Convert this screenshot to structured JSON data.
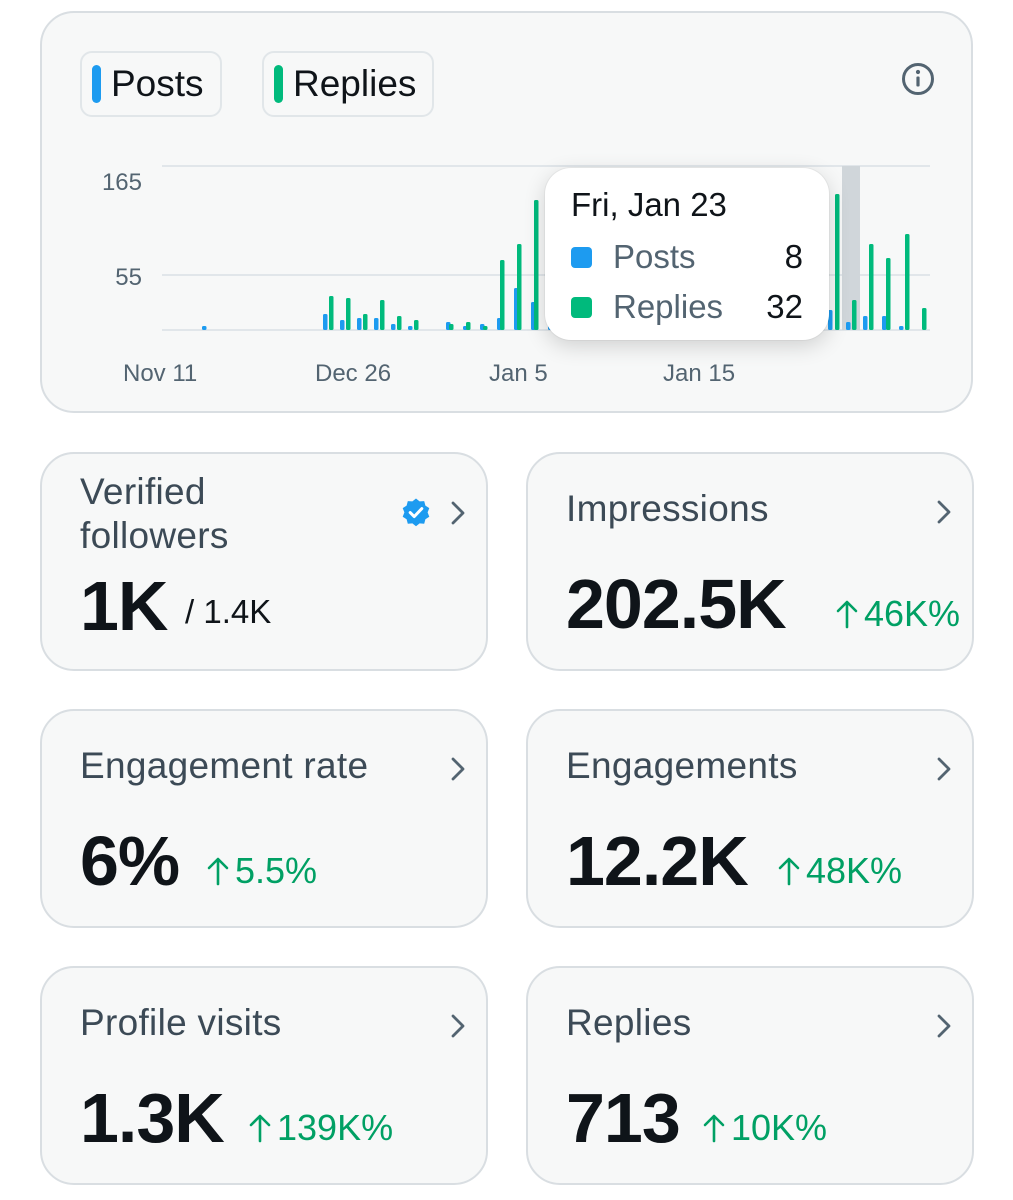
{
  "legend": {
    "posts_label": "Posts",
    "replies_label": "Replies",
    "posts_color": "#1d9bf0",
    "replies_color": "#00ba7c"
  },
  "info_icon": "info-circle-icon",
  "chart_data": {
    "type": "bar",
    "y_ticks": [
      "165",
      "55"
    ],
    "x_tick_labels": [
      "Nov 11",
      "Dec 26",
      "Jan 5",
      "Jan 15"
    ],
    "ylim": [
      0,
      190
    ],
    "grid": true,
    "series": [
      {
        "name": "Posts",
        "color": "#1d9bf0",
        "values": [
          2,
          0,
          0,
          0,
          0,
          0,
          0,
          0,
          0,
          0,
          0,
          0,
          0,
          0,
          0,
          0,
          0,
          0,
          0,
          0,
          0,
          0,
          0,
          0,
          0,
          0,
          0,
          0,
          0,
          0,
          0,
          0,
          0,
          0,
          0,
          0,
          0,
          0,
          0,
          0,
          0,
          0,
          0,
          0,
          0,
          0,
          0,
          0,
          0,
          0,
          0,
          0,
          0,
          0,
          0,
          0,
          0,
          0,
          0,
          0,
          0,
          0,
          0,
          0,
          0,
          0,
          0,
          0,
          0,
          0,
          0,
          0,
          0,
          0,
          0,
          0,
          0,
          0,
          0,
          0,
          0,
          0,
          0,
          0,
          0,
          0,
          0,
          0,
          0,
          0,
          0,
          0,
          0,
          0,
          0,
          0,
          0,
          0,
          0,
          0,
          0,
          0,
          0,
          0,
          0,
          0,
          0,
          0,
          0,
          0,
          0,
          0,
          0,
          0,
          0,
          0,
          0,
          0,
          0,
          0,
          0,
          0,
          0,
          0,
          0,
          0,
          0,
          0,
          0,
          0
        ]
      }
    ]
  },
  "tooltip": {
    "date": "Fri, Jan 23",
    "rows": [
      {
        "name": "Posts",
        "value": "8"
      },
      {
        "name": "Replies",
        "value": "32"
      }
    ]
  },
  "stats": {
    "verified": {
      "title_line1": "Verified",
      "title_line2": "followers",
      "value": "1K",
      "sub": "/ 1.4K",
      "badge": "verified-badge-icon"
    },
    "impressions": {
      "title": "Impressions",
      "value": "202.5K",
      "delta": "46K%"
    },
    "engagement_rate": {
      "title": "Engagement rate",
      "value": "6%",
      "delta": "5.5%"
    },
    "engagements": {
      "title": "Engagements",
      "value": "12.2K",
      "delta": "48K%"
    },
    "profile_visits": {
      "title": "Profile visits",
      "value": "1.3K",
      "delta": "139K%"
    },
    "replies": {
      "title": "Replies",
      "value": "713",
      "delta": "10K%"
    }
  },
  "colors": {
    "positive": "#00a064",
    "card_bg": "#f7f8f8",
    "card_border": "#d9dee2"
  }
}
